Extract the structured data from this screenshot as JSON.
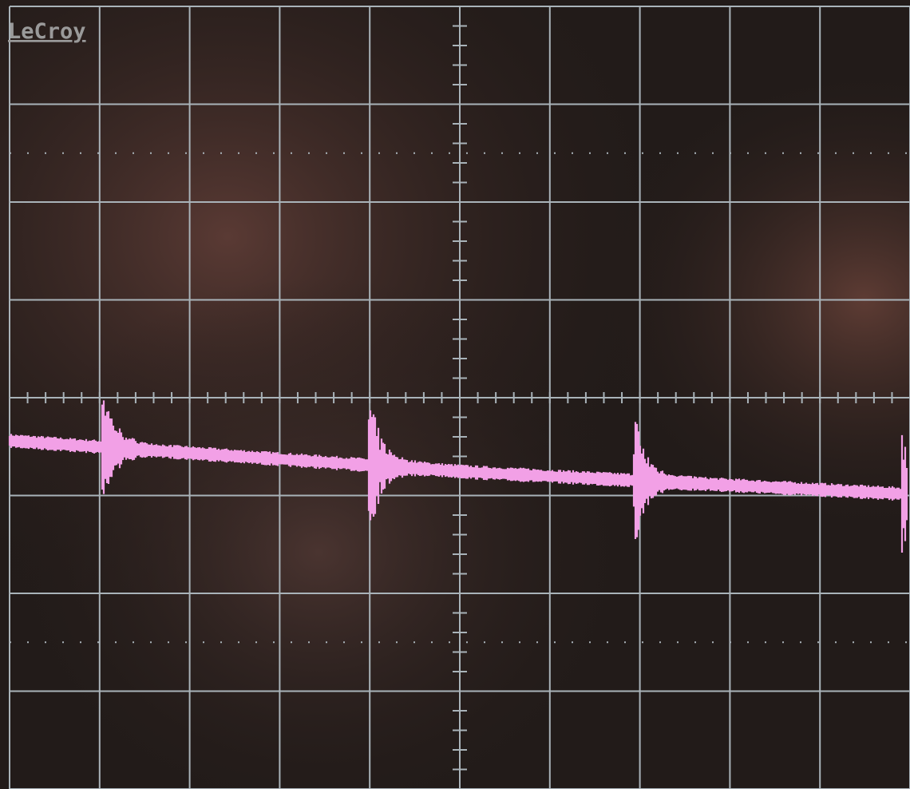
{
  "logo": "LeCroy"
}
